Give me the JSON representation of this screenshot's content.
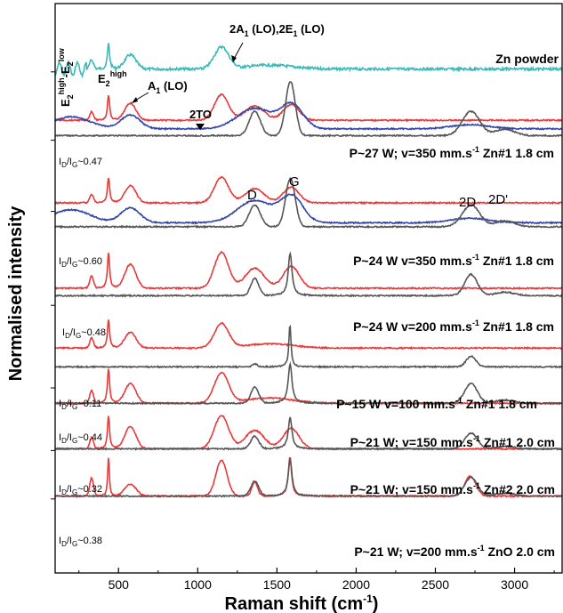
{
  "chart_data": {
    "type": "line",
    "xlabel": "Raman shift (cm",
    "xlabel_sup": "-1",
    "xlabel_suffix": ")",
    "ylabel": "Normalised intensity",
    "xlim": [
      100,
      3300
    ],
    "xticks": [
      500,
      1000,
      1500,
      2000,
      2500,
      3000
    ],
    "colors": {
      "gray": "#555555",
      "red": "#e8393a",
      "blue": "#3344a8",
      "cyan": "#3ab9b9"
    },
    "panels": [
      {
        "label": "Zn powder",
        "ratio": "",
        "series": [
          {
            "color_key": "cyan",
            "baseline": 0.115,
            "height": 0.045,
            "kind": "zno"
          }
        ]
      },
      {
        "label": "P~27 W; v=350 mm.s-1 Zn#1 1.8 cm",
        "label_pre": "P~27 W; v=350 mm.s",
        "label_sup": "-1",
        "label_post": " Zn#1 1.8 cm",
        "ratio_value": "0.47",
        "series": [
          {
            "color_key": "red",
            "baseline": 0.205,
            "height": 0.05,
            "kind": "zno_d"
          },
          {
            "color_key": "blue",
            "baseline": 0.22,
            "height": 0.06,
            "kind": "blue"
          },
          {
            "color_key": "gray",
            "baseline": 0.232,
            "height": 0.095,
            "kind": "carbon_broad"
          }
        ]
      },
      {
        "label": "P~24 W v=350 mm.s-1 Zn#1 1.8 cm",
        "label_pre": "P~24 W v=350 mm.s",
        "label_sup": "-1",
        "label_post": " Zn#1 1.8 cm",
        "ratio_value": "0.60",
        "series": [
          {
            "color_key": "red",
            "baseline": 0.35,
            "height": 0.05,
            "kind": "zno_d"
          },
          {
            "color_key": "blue",
            "baseline": 0.385,
            "height": 0.065,
            "kind": "blue"
          },
          {
            "color_key": "gray",
            "baseline": 0.392,
            "height": 0.085,
            "kind": "carbon_broad"
          }
        ]
      },
      {
        "label": "P~24 W v=200 mm.s-1 Zn#1 1.8 cm",
        "label_pre": "P~24 W v=200 mm.s",
        "label_sup": "-1",
        "label_post": " Zn#1 1.8 cm",
        "ratio_value": "0.48",
        "series": [
          {
            "color_key": "red",
            "baseline": 0.5,
            "height": 0.07,
            "kind": "zno_d"
          },
          {
            "color_key": "gray",
            "baseline": 0.513,
            "height": 0.075,
            "kind": "carbon_mid"
          }
        ]
      },
      {
        "label": "P~15 W v=100 mm.s-1 Zn#1 1.8 cm",
        "label_pre": "P~15 W v=100 mm.s",
        "label_sup": "-1",
        "label_post": " Zn#1 1.8 cm",
        "ratio_value": "0.11",
        "series": [
          {
            "color_key": "red",
            "baseline": 0.605,
            "height": 0.05,
            "kind": "zno"
          },
          {
            "color_key": "gray",
            "baseline": 0.638,
            "height": 0.075,
            "kind": "carbon_sharp"
          }
        ]
      },
      {
        "label": "P~21 W; v=150 mm.s-1 Zn#1 2.0 cm",
        "label_pre": "P~21 W; v=150 mm.s",
        "label_sup": "-1",
        "label_post": " Zn#1 2.0 cm",
        "ratio_value": "0.44",
        "series": [
          {
            "color_key": "red",
            "baseline": 0.702,
            "height": 0.062,
            "kind": "zno"
          },
          {
            "color_key": "gray",
            "baseline": 0.702,
            "height": 0.07,
            "kind": "carbon_mid"
          }
        ]
      },
      {
        "label": "P~21 W; v=150 mm.s-1 Zn#2 2.0 cm",
        "label_pre": "P~21 W; v=150 mm.s",
        "label_sup": "-1",
        "label_post": " Zn#2 2.0 cm",
        "ratio_value": "0.32",
        "series": [
          {
            "color_key": "red",
            "baseline": 0.782,
            "height": 0.065,
            "kind": "zno_d"
          },
          {
            "color_key": "gray",
            "baseline": 0.782,
            "height": 0.055,
            "kind": "carbon_mid"
          }
        ]
      },
      {
        "label": "P~21 W; v=200 mm.s-1 ZnO 2.0 cm",
        "label_pre": "P~21 W; v=200 mm.s",
        "label_sup": "-1",
        "label_post": " ZnO 2.0 cm",
        "ratio_value": "0.38",
        "series": [
          {
            "color_key": "red",
            "baseline": 0.865,
            "height": 0.07,
            "kind": "zno_carbon"
          },
          {
            "color_key": "gray",
            "baseline": 0.865,
            "height": 0.065,
            "kind": "carbon_mid"
          }
        ]
      }
    ],
    "annotations": {
      "zno_lo": "2A",
      "zno_lo_sub1": "1",
      "zno_lo_mid": " (LO),2E",
      "zno_lo_sub2": "1",
      "zno_lo_end": " (LO)",
      "e2": "E",
      "e2_sub": "2",
      "e2_sup": "high",
      "e2low": "-E",
      "e2low_sub": "2",
      "e2low_sup": "low",
      "e2b": "E",
      "e2b_sub": "2",
      "e2b_sup": "high",
      "a1": "A",
      "a1_sub": "1",
      "a1_end": " (LO)",
      "two_to": "2TO",
      "d": "D",
      "g": "G",
      "two_d": "2D",
      "two_d_prime": "2D'",
      "ratio_prefix_i": "I",
      "ratio_d": "D",
      "ratio_g": "G",
      "ratio_sep": "/I",
      "ratio_eq": "~"
    }
  }
}
